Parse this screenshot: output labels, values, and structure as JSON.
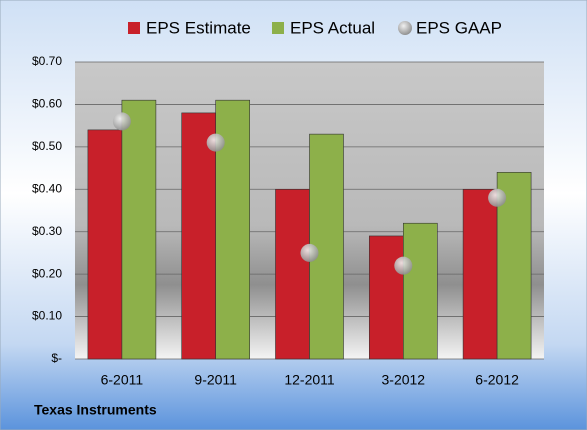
{
  "chart_data": {
    "type": "bar",
    "categories": [
      "6-2011",
      "9-2011",
      "12-2011",
      "3-2012",
      "6-2012"
    ],
    "series": [
      {
        "name": "EPS Estimate",
        "color": "#c8202a",
        "values": [
          0.54,
          0.58,
          0.4,
          0.29,
          0.4
        ]
      },
      {
        "name": "EPS Actual",
        "color": "#8db04a",
        "values": [
          0.61,
          0.61,
          0.53,
          0.32,
          0.44
        ]
      },
      {
        "name": "EPS GAAP",
        "color": "#a8a8a8",
        "marker": "circle",
        "values": [
          0.56,
          0.51,
          0.25,
          0.22,
          0.38
        ]
      }
    ],
    "ylim": [
      0,
      0.7
    ],
    "yticks": [
      {
        "value": 0,
        "label": "$-"
      },
      {
        "value": 0.1,
        "label": "$0.10"
      },
      {
        "value": 0.2,
        "label": "$0.20"
      },
      {
        "value": 0.3,
        "label": "$0.30"
      },
      {
        "value": 0.4,
        "label": "$0.40"
      },
      {
        "value": 0.5,
        "label": "$0.50"
      },
      {
        "value": 0.6,
        "label": "$0.60"
      },
      {
        "value": 0.7,
        "label": "$0.70"
      }
    ],
    "grid": true,
    "legend": "top",
    "footer": "Texas Instruments"
  }
}
